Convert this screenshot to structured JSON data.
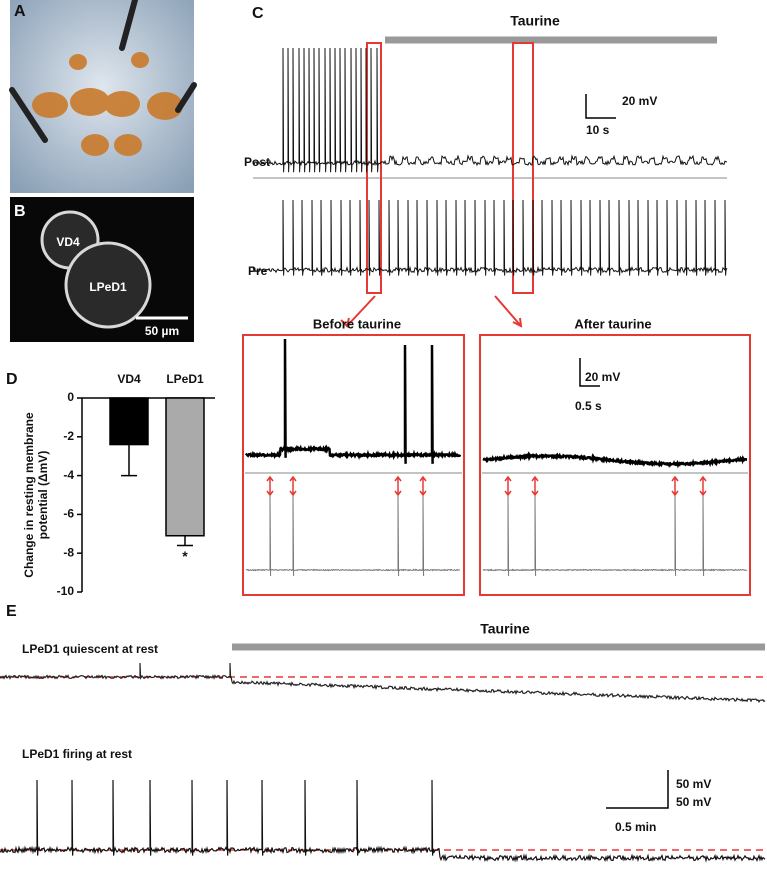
{
  "panels": {
    "A": {
      "label": "A"
    },
    "B": {
      "label": "B",
      "cells": [
        "VD4",
        "LPeD1"
      ],
      "scale_bar": "50 µm"
    },
    "C": {
      "label": "C",
      "drug": "Taurine",
      "scale_v": "20 mV",
      "scale_t": "10 s",
      "traces": [
        "Post",
        "Pre"
      ],
      "insets": [
        {
          "title": "Before taurine"
        },
        {
          "title": "After taurine",
          "scale_v": "20 mV",
          "scale_t": "0.5 s"
        }
      ]
    },
    "D": {
      "label": "D"
    },
    "E": {
      "label": "E",
      "drug": "Taurine",
      "traces": [
        "LPeD1 quiescent at rest",
        "LPeD1 firing at rest"
      ],
      "scale_v": [
        "50 mV",
        "50 mV"
      ],
      "scale_t": "0.5 min"
    }
  },
  "chart_data": {
    "type": "bar",
    "ylabel_lines": [
      "Change in resting membrane",
      "potential (ΔmV)"
    ],
    "categories": [
      "VD4",
      "LPeD1"
    ],
    "values": [
      -2.4,
      -7.1
    ],
    "errors": [
      1.6,
      0.5
    ],
    "colors": [
      "#000000",
      "#aaaaaa"
    ],
    "annotations": [
      null,
      "*"
    ],
    "ylim": [
      -10,
      0
    ],
    "yticks": [
      0,
      -2,
      -4,
      -6,
      -8,
      -10
    ]
  }
}
